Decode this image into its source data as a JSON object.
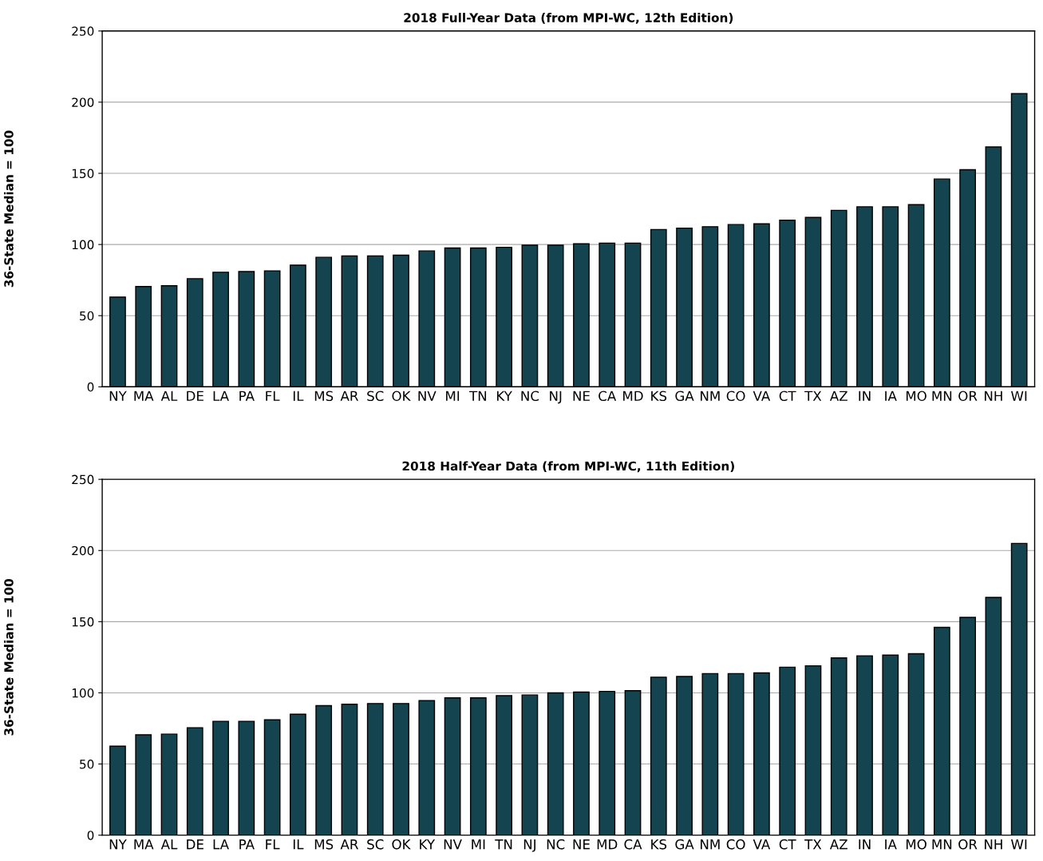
{
  "chart_data": [
    {
      "type": "bar",
      "title": "2018 Full-Year Data (from MPI-WC, 12th Edition)",
      "ylabel": "36-State Median = 100",
      "categories": [
        "NY",
        "MA",
        "AL",
        "DE",
        "LA",
        "PA",
        "FL",
        "IL",
        "MS",
        "AR",
        "SC",
        "OK",
        "NV",
        "MI",
        "TN",
        "KY",
        "NC",
        "NJ",
        "NE",
        "CA",
        "MD",
        "KS",
        "GA",
        "NM",
        "CO",
        "VA",
        "CT",
        "TX",
        "AZ",
        "IN",
        "IA",
        "MO",
        "MN",
        "OR",
        "NH",
        "WI"
      ],
      "values": [
        63,
        70.5,
        71,
        76,
        80.5,
        81,
        81.5,
        85.5,
        91,
        92,
        92,
        92.5,
        95.5,
        97.5,
        97.5,
        98,
        99.5,
        99.5,
        100.5,
        101,
        101,
        110.5,
        111.5,
        112.5,
        114,
        114.5,
        117,
        119,
        124,
        126.5,
        126.5,
        128,
        146,
        152.5,
        168.5,
        206
      ],
      "color": "#14444f",
      "ylim": [
        0,
        250
      ],
      "yticks": [
        0,
        50,
        100,
        150,
        200,
        250
      ],
      "grid": "y"
    },
    {
      "type": "bar",
      "title": "2018 Half-Year Data (from MPI-WC, 11th Edition)",
      "ylabel": "36-State Median = 100",
      "categories": [
        "NY",
        "MA",
        "AL",
        "DE",
        "LA",
        "PA",
        "FL",
        "IL",
        "MS",
        "AR",
        "SC",
        "OK",
        "KY",
        "NV",
        "MI",
        "TN",
        "NJ",
        "NC",
        "NE",
        "MD",
        "CA",
        "KS",
        "GA",
        "NM",
        "CO",
        "VA",
        "CT",
        "TX",
        "AZ",
        "IN",
        "IA",
        "MO",
        "MN",
        "OR",
        "NH",
        "WI"
      ],
      "values": [
        62.5,
        70.5,
        71,
        75.5,
        80,
        80,
        81,
        85,
        91,
        92,
        92.5,
        92.5,
        94.5,
        96.5,
        96.5,
        98,
        98.5,
        100,
        100.5,
        101,
        101.5,
        111,
        111.5,
        113.5,
        113.5,
        114,
        118,
        119,
        124.5,
        126,
        126.5,
        127.5,
        146,
        153,
        167,
        205
      ],
      "color": "#14444f",
      "ylim": [
        0,
        250
      ],
      "yticks": [
        0,
        50,
        100,
        150,
        200,
        250
      ],
      "grid": "y"
    }
  ]
}
